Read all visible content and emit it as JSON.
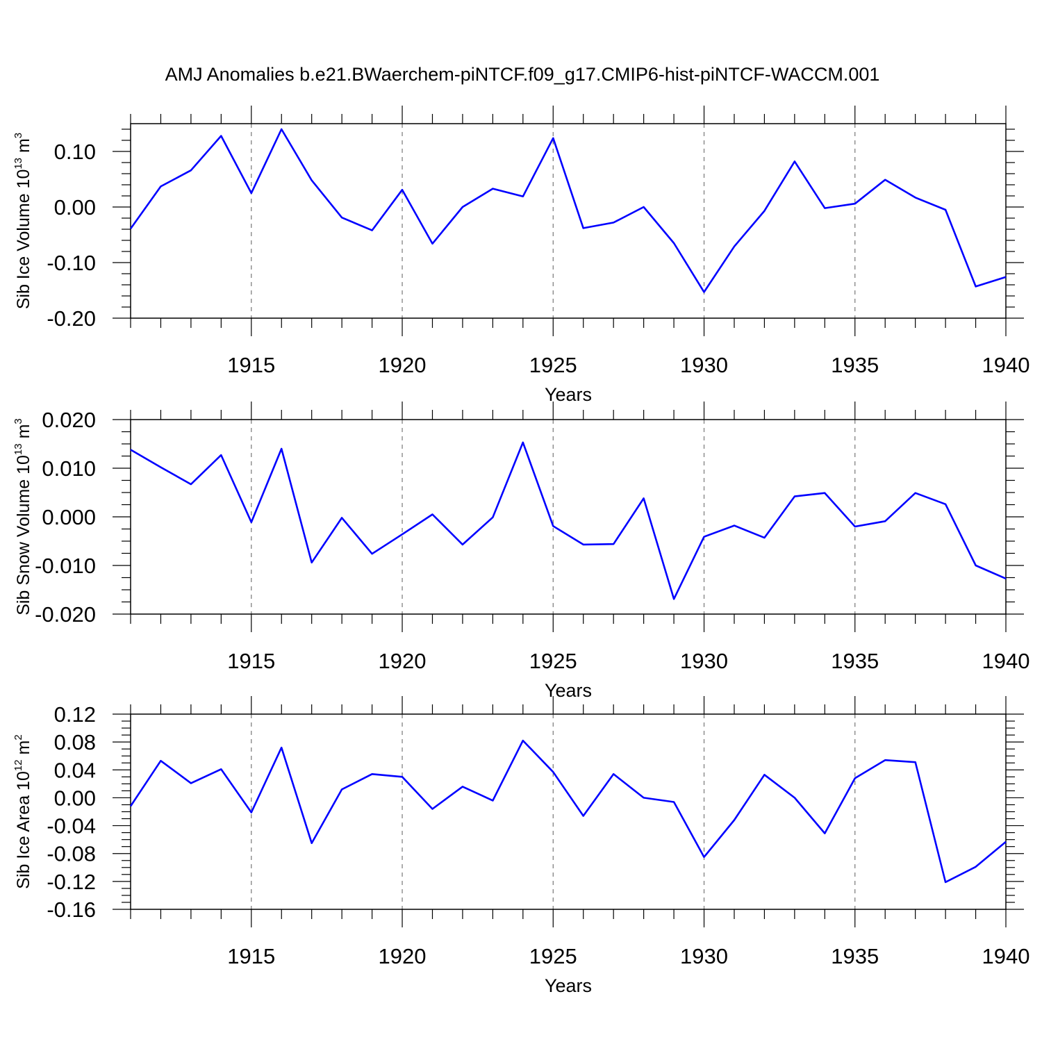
{
  "chart_data": [
    {
      "type": "line",
      "title": "AMJ Anomalies b.e21.BWaerchem-piNTCF.f09_g17.CMIP6-hist-piNTCF-WACCM.001",
      "ylabel": {
        "text": "Sib Ice Volume 10",
        "exponent": "13",
        "unit": "m",
        "unit_exponent": "3"
      },
      "xlabel": "Years",
      "xlim": [
        1911,
        1940
      ],
      "ylim": [
        -0.2,
        0.15
      ],
      "xticks": [
        "1915",
        "1920",
        "1925",
        "1930",
        "1935",
        "1940"
      ],
      "yticks": [
        "0.10",
        "0.00",
        "-0.10",
        "-0.20"
      ],
      "grid": "dashed vertical at major x ticks",
      "series": [
        {
          "name": "Sib Ice Volume",
          "color": "#0000ff",
          "x": [
            1911,
            1912,
            1913,
            1914,
            1915,
            1916,
            1917,
            1918,
            1919,
            1920,
            1921,
            1922,
            1923,
            1924,
            1925,
            1926,
            1927,
            1928,
            1929,
            1930,
            1931,
            1932,
            1933,
            1934,
            1935,
            1936,
            1937,
            1938,
            1939,
            1940
          ],
          "values": [
            -0.039,
            0.037,
            0.066,
            0.128,
            0.025,
            0.14,
            0.048,
            -0.019,
            -0.042,
            0.031,
            -0.066,
            0.0,
            0.033,
            0.019,
            0.124,
            -0.038,
            -0.028,
            0.0,
            -0.065,
            -0.153,
            -0.071,
            -0.007,
            0.082,
            -0.002,
            0.006,
            0.049,
            0.017,
            -0.005,
            -0.143,
            -0.126
          ]
        }
      ]
    },
    {
      "type": "line",
      "ylabel": {
        "text": "Sib Snow Volume 10",
        "exponent": "13",
        "unit": "m",
        "unit_exponent": "3"
      },
      "xlabel": "Years",
      "xlim": [
        1911,
        1940
      ],
      "ylim": [
        -0.02,
        0.02
      ],
      "xticks": [
        "1915",
        "1920",
        "1925",
        "1930",
        "1935",
        "1940"
      ],
      "yticks": [
        "0.020",
        "0.010",
        "0.000",
        "-0.010",
        "-0.020"
      ],
      "grid": "dashed vertical at major x ticks",
      "series": [
        {
          "name": "Sib Snow Volume",
          "color": "#0000ff",
          "x": [
            1911,
            1912,
            1913,
            1914,
            1915,
            1916,
            1917,
            1918,
            1919,
            1920,
            1921,
            1922,
            1923,
            1924,
            1925,
            1926,
            1927,
            1928,
            1929,
            1930,
            1931,
            1932,
            1933,
            1934,
            1935,
            1936,
            1937,
            1938,
            1939,
            1940
          ],
          "values": [
            0.0138,
            0.0102,
            0.0067,
            0.0127,
            -0.0011,
            0.014,
            -0.0094,
            -0.0002,
            -0.0076,
            -0.0036,
            0.0005,
            -0.0057,
            -0.0001,
            0.0153,
            -0.0019,
            -0.0057,
            -0.0056,
            0.0038,
            -0.0169,
            -0.0041,
            -0.0018,
            -0.0043,
            0.0042,
            0.0049,
            -0.002,
            -0.0009,
            0.0049,
            0.0026,
            -0.01,
            -0.0127
          ]
        }
      ]
    },
    {
      "type": "line",
      "ylabel": {
        "text": "Sib Ice Area 10",
        "exponent": "12",
        "unit": "m",
        "unit_exponent": "2"
      },
      "xlabel": "Years",
      "xlim": [
        1911,
        1940
      ],
      "ylim": [
        -0.16,
        0.12
      ],
      "xticks": [
        "1915",
        "1920",
        "1925",
        "1930",
        "1935",
        "1940"
      ],
      "yticks": [
        "0.12",
        "0.08",
        "0.04",
        "0.00",
        "-0.04",
        "-0.08",
        "-0.12",
        "-0.16"
      ],
      "grid": "dashed vertical at major x ticks",
      "series": [
        {
          "name": "Sib Ice Area",
          "color": "#0000ff",
          "x": [
            1911,
            1912,
            1913,
            1914,
            1915,
            1916,
            1917,
            1918,
            1919,
            1920,
            1921,
            1922,
            1923,
            1924,
            1925,
            1926,
            1927,
            1928,
            1929,
            1930,
            1931,
            1932,
            1933,
            1934,
            1935,
            1936,
            1937,
            1938,
            1939,
            1940
          ],
          "values": [
            -0.012,
            0.053,
            0.021,
            0.041,
            -0.021,
            0.072,
            -0.065,
            0.012,
            0.034,
            0.03,
            -0.016,
            0.016,
            -0.004,
            0.082,
            0.037,
            -0.026,
            0.034,
            0.0,
            -0.006,
            -0.085,
            -0.032,
            0.033,
            0.0,
            -0.051,
            0.028,
            0.054,
            0.051,
            -0.121,
            -0.099,
            -0.063
          ]
        }
      ]
    }
  ]
}
